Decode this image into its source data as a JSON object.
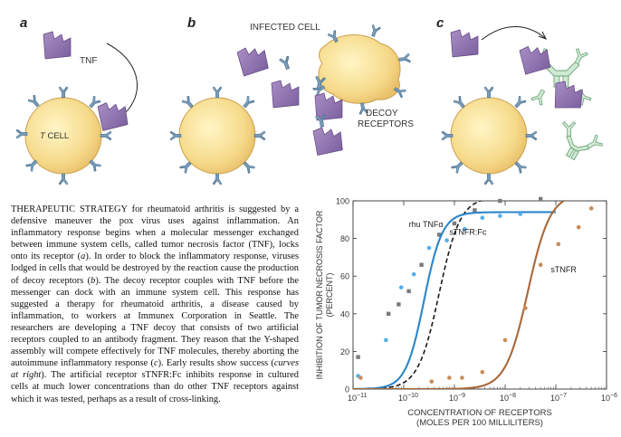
{
  "illustration": {
    "panel_a": {
      "letter": "a",
      "tnf_label": "TNF",
      "cell_label_italic": "T",
      "cell_label": "CELL"
    },
    "panel_b": {
      "letter": "b",
      "infected_label": "INFECTED CELL",
      "decoy_label_1": "DECOY",
      "decoy_label_2": "RECEPTORS"
    },
    "panel_c": {
      "letter": "c"
    }
  },
  "caption": {
    "lead": "THERAPEUTIC STRATEGY for rheumatoid arthritis is suggested by a defensive maneuver the pox virus uses against inflammation. An inflammatory response begins when a molecular messenger exchanged between immune system cells, called tumor necrosis factor (TNF), locks onto its receptor (",
    "ref_a": "a",
    "part2": "). In order to block the inflammatory response, viruses lodged in cells that would be destroyed by the reaction cause the production of decoy receptors (",
    "ref_b": "b",
    "part3": "). The decoy receptor couples with TNF before the messenger can dock with an immune system cell. This response has suggested a therapy for rheumatoid arthritis, a disease caused by inflammation, to workers at Immunex Corporation in Seattle. The researchers are developing a TNF decoy that consists of two artificial receptors coupled to an antibody fragment. They reason that the Y-shaped assembly will compete effectively for TNF molecules, thereby aborting the autoimmune inflammatory response (",
    "ref_c": "c",
    "part4": "). Early results show success (",
    "curves_ref": "curves at right",
    "part5": "). The artificial receptor sTNFR:Fc inhibits response in cultured cells at much lower concentrations than do other TNF receptors against which it was tested, perhaps as a result of cross-linking."
  },
  "chart_data": {
    "type": "line",
    "xscale": "log",
    "xlim": [
      1e-11,
      1e-06
    ],
    "ylim": [
      0,
      100
    ],
    "x_tick_exponents": [
      -11,
      -10,
      -9,
      -8,
      -7,
      -6
    ],
    "x_tick_base": "10",
    "y_ticks": [
      "0",
      "20",
      "40",
      "60",
      "80",
      "100"
    ],
    "xlabel_line1": "CONCENTRATION OF RECEPTORS",
    "xlabel_line2": "(MOLES PER 100 MILLILITERS)",
    "ylabel_line1": "INHIBITION OF TUMOR NECROSIS FACTOR",
    "ylabel_line2": "(PERCENT)",
    "series": [
      {
        "name": "rhu TNFα",
        "style": "dashed",
        "color": "#1a1a1a",
        "marker_color": "#7a7a7a",
        "marker": "square",
        "curve": {
          "ec50_log": -9.3,
          "hill": 0.95,
          "top": 102
        },
        "points": [
          [
            -10.9,
            17
          ],
          [
            -10.3,
            40
          ],
          [
            -10.1,
            45
          ],
          [
            -9.9,
            52
          ],
          [
            -9.65,
            66
          ],
          [
            -9.3,
            82
          ],
          [
            -9.0,
            88
          ],
          [
            -8.6,
            95
          ],
          [
            -8.1,
            100
          ],
          [
            -7.3,
            101
          ]
        ]
      },
      {
        "name": "sTNFR:Fc",
        "style": "solid",
        "color": "#2b86c9",
        "marker_color": "#55aee8",
        "marker": "circle",
        "curve": {
          "ec50_log": -9.6,
          "hill": 1.1,
          "top": 94
        },
        "points": [
          [
            -10.9,
            7
          ],
          [
            -10.35,
            26
          ],
          [
            -10.05,
            54
          ],
          [
            -9.8,
            61
          ],
          [
            -9.5,
            75
          ],
          [
            -9.15,
            79
          ],
          [
            -8.8,
            85
          ],
          [
            -8.45,
            91
          ],
          [
            -8.1,
            92
          ],
          [
            -7.7,
            93
          ]
        ]
      },
      {
        "name": "sTNFR",
        "style": "solid",
        "color": "#a8683a",
        "marker_color": "#c98c58",
        "marker": "circle",
        "curve": {
          "ec50_log": -7.55,
          "hill": 0.9,
          "top": 104
        },
        "points": [
          [
            -10.85,
            6
          ],
          [
            -9.45,
            4
          ],
          [
            -9.1,
            6
          ],
          [
            -8.85,
            6
          ],
          [
            -8.45,
            9
          ],
          [
            -8.0,
            26
          ],
          [
            -7.6,
            43
          ],
          [
            -7.3,
            66
          ],
          [
            -6.95,
            77
          ],
          [
            -6.55,
            86
          ],
          [
            -6.3,
            96
          ]
        ]
      }
    ]
  }
}
